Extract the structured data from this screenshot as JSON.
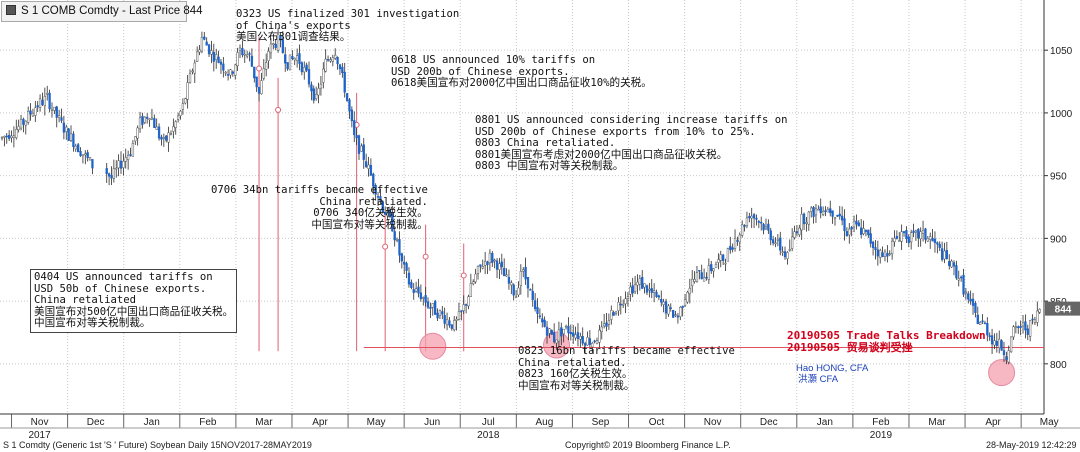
{
  "header": {
    "title": "S 1 COMB Comdty - Last Price 844"
  },
  "chart_data": {
    "type": "candlestick",
    "ticker": "S 1 Comdty (Generic 1st 'S ' Future) Soybean",
    "frequency": "Daily",
    "date_range": "15NOV2017-28MAY2019",
    "ylim": [
      760,
      1090
    ],
    "yticks": [
      800,
      850,
      900,
      950,
      1000,
      1050
    ],
    "last_price": 844,
    "reference_line": 813,
    "grid": true,
    "months": [
      {
        "label": "Nov",
        "year": "2017"
      },
      {
        "label": "Dec"
      },
      {
        "label": "Jan"
      },
      {
        "label": "Feb"
      },
      {
        "label": "Mar"
      },
      {
        "label": "Apr"
      },
      {
        "label": "May"
      },
      {
        "label": "Jun"
      },
      {
        "label": "Jul",
        "year": "2018"
      },
      {
        "label": "Aug"
      },
      {
        "label": "Sep"
      },
      {
        "label": "Oct"
      },
      {
        "label": "Nov"
      },
      {
        "label": "Dec"
      },
      {
        "label": "Jan"
      },
      {
        "label": "Feb",
        "year": "2019"
      },
      {
        "label": "Mar"
      },
      {
        "label": "Apr"
      },
      {
        "label": "May"
      }
    ],
    "price_path": [
      [
        0,
        980
      ],
      [
        8,
        990
      ],
      [
        14,
        1005
      ],
      [
        19,
        1012
      ],
      [
        22,
        1000
      ],
      [
        27,
        985
      ],
      [
        33,
        970
      ],
      [
        38,
        958
      ],
      [
        43,
        955
      ],
      [
        46,
        948
      ],
      [
        50,
        960
      ],
      [
        54,
        970
      ],
      [
        58,
        992
      ],
      [
        62,
        1000
      ],
      [
        66,
        982
      ],
      [
        68,
        976
      ],
      [
        72,
        988
      ],
      [
        76,
        1005
      ],
      [
        80,
        1035
      ],
      [
        84,
        1060
      ],
      [
        88,
        1048
      ],
      [
        92,
        1040
      ],
      [
        96,
        1030
      ],
      [
        100,
        1050
      ],
      [
        104,
        1045
      ],
      [
        108,
        1015
      ],
      [
        112,
        1050
      ],
      [
        116,
        1058
      ],
      [
        120,
        1040
      ],
      [
        124,
        1045
      ],
      [
        128,
        1030
      ],
      [
        132,
        1010
      ],
      [
        136,
        1040
      ],
      [
        140,
        1050
      ],
      [
        144,
        1020
      ],
      [
        148,
        980
      ],
      [
        152,
        965
      ],
      [
        156,
        945
      ],
      [
        160,
        925
      ],
      [
        164,
        910
      ],
      [
        168,
        880
      ],
      [
        172,
        860
      ],
      [
        176,
        855
      ],
      [
        180,
        845
      ],
      [
        184,
        840
      ],
      [
        187,
        835
      ],
      [
        190,
        830
      ],
      [
        193,
        840
      ],
      [
        196,
        855
      ],
      [
        199,
        870
      ],
      [
        202,
        880
      ],
      [
        205,
        885
      ],
      [
        208,
        880
      ],
      [
        211,
        870
      ],
      [
        214,
        860
      ],
      [
        216,
        855
      ],
      [
        218,
        875
      ],
      [
        221,
        865
      ],
      [
        224,
        840
      ],
      [
        228,
        830
      ],
      [
        232,
        820
      ],
      [
        236,
        828
      ],
      [
        240,
        826
      ],
      [
        244,
        820
      ],
      [
        248,
        818
      ],
      [
        252,
        825
      ],
      [
        256,
        840
      ],
      [
        260,
        850
      ],
      [
        264,
        860
      ],
      [
        268,
        865
      ],
      [
        272,
        858
      ],
      [
        276,
        850
      ],
      [
        280,
        842
      ],
      [
        284,
        838
      ],
      [
        288,
        860
      ],
      [
        292,
        870
      ],
      [
        296,
        872
      ],
      [
        300,
        880
      ],
      [
        304,
        885
      ],
      [
        308,
        900
      ],
      [
        310,
        905
      ],
      [
        314,
        920
      ],
      [
        318,
        915
      ],
      [
        322,
        905
      ],
      [
        326,
        895
      ],
      [
        330,
        885
      ],
      [
        333,
        905
      ],
      [
        336,
        915
      ],
      [
        340,
        920
      ],
      [
        344,
        925
      ],
      [
        348,
        923
      ],
      [
        352,
        918
      ],
      [
        355,
        905
      ],
      [
        358,
        910
      ],
      [
        362,
        905
      ],
      [
        366,
        895
      ],
      [
        370,
        885
      ],
      [
        374,
        895
      ],
      [
        378,
        905
      ],
      [
        382,
        900
      ],
      [
        386,
        903
      ],
      [
        390,
        900
      ],
      [
        394,
        890
      ],
      [
        398,
        880
      ],
      [
        402,
        870
      ],
      [
        406,
        850
      ],
      [
        410,
        835
      ],
      [
        413,
        830
      ],
      [
        416,
        820
      ],
      [
        419,
        815
      ],
      [
        422,
        808
      ],
      [
        425,
        825
      ],
      [
        428,
        830
      ],
      [
        431,
        828
      ],
      [
        434,
        835
      ],
      [
        436,
        844
      ]
    ],
    "markers": [
      {
        "date": "0323",
        "day": 108,
        "price": 1045
      },
      {
        "date": "0404",
        "day": 116,
        "price": 1012
      },
      {
        "date": "0618",
        "day": 149,
        "price": 1000
      },
      {
        "date": "0706",
        "day": 161,
        "price": 903
      },
      {
        "date": "0801",
        "day": 178,
        "price": 895
      },
      {
        "date": "0823",
        "day": 194,
        "price": 880
      }
    ],
    "highlights": [
      {
        "day": 181,
        "price": 814
      },
      {
        "day": 233,
        "price": 815
      },
      {
        "day": 420,
        "price": 793
      }
    ]
  },
  "annotations": {
    "a0323": [
      "0323 US finalized 301 investigation",
      "of China's exports",
      "美国公布301调查结果。"
    ],
    "a0618": [
      "0618 US announced 10% tariffs on",
      "USD 200b of Chinese exports.",
      "0618美国宣布对2000亿中国出口商品征收10%的关税。"
    ],
    "a0801": [
      "0801 US announced considering increase tariffs on",
      "USD 200b of Chinese exports from 10% to 25%.",
      "0803 China retaliated.",
      "0801美国宣布考虑对2000亿中国出口商品征收关税。",
      "0803 中国宣布对等关税制裁。"
    ],
    "a0706": [
      "0706 34bn tariffs became effective",
      "China retaliated.",
      "0706 340亿关税生效。",
      "中国宣布对等关税制裁。"
    ],
    "a0404": [
      "0404 US announced tariffs on",
      "USD 50b of Chinese exports.",
      "China retaliated",
      "美国宣布对500亿中国出口商品征收关税。",
      "中国宣布对等关税制裁。"
    ],
    "a0823": [
      "0823 16bn tariffs became effective",
      "China retaliated.",
      "0823 160亿关税生效。",
      "中国宣布对等关税制裁。"
    ],
    "a0505": [
      "20190505 Trade Talks Breakdown",
      "20190505 贸易谈判受挫"
    ],
    "author": [
      "Hao HONG, CFA",
      "洪灝 CFA"
    ]
  },
  "footer": {
    "left": "S 1 Comdty (Generic 1st 'S ' Future) Soybean  Daily 15NOV2017-28MAY2019",
    "center": "Copyright© 2019 Bloomberg Finance L.P.",
    "right": "28-May-2019 12:42:29"
  },
  "colors": {
    "up": "#ffffff",
    "down": "#1f64c8",
    "grid": "#c8c8c8",
    "event_line": "#e06070",
    "ref_line": "#e05060",
    "highlight": "#f4a0b0"
  }
}
